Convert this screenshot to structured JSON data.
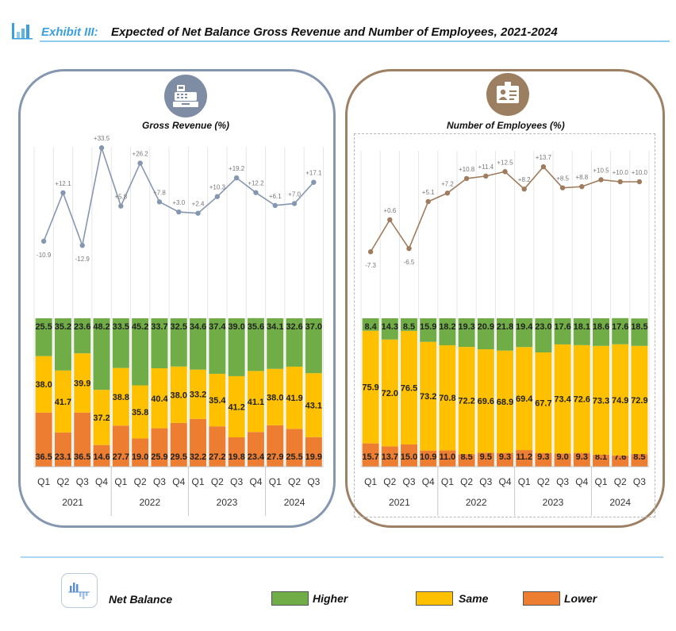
{
  "header": {
    "exhibit_label": "Exhibit III:",
    "title": "Expected of Net Balance Gross Revenue and Number of Employees, 2021-2024"
  },
  "colors": {
    "higher": "#70ad47",
    "same": "#ffc000",
    "lower": "#ed7d31",
    "revenue_line": "#8597b0",
    "employees_line": "#9e7c5d",
    "title_accent": "#3aa0e0"
  },
  "legend": {
    "net_balance": "Net Balance",
    "higher": "Higher",
    "same": "Same",
    "lower": "Lower"
  },
  "icons": {
    "header": "bar-chart-icon",
    "revenue_badge": "cash-register-icon",
    "employees_badge": "id-badge-icon",
    "legend_net_balance": "bar-chart-icon"
  },
  "chart_data": [
    {
      "type": "bar",
      "title": "Gross Revenue (%)",
      "stacked": true,
      "categories": [
        "Q1",
        "Q2",
        "Q3",
        "Q4",
        "Q1",
        "Q2",
        "Q3",
        "Q4",
        "Q1",
        "Q2",
        "Q3",
        "Q4",
        "Q1",
        "Q2",
        "Q3"
      ],
      "groups": [
        {
          "label": "2021",
          "count": 4
        },
        {
          "label": "2022",
          "count": 4
        },
        {
          "label": "2023",
          "count": 4
        },
        {
          "label": "2024",
          "count": 3
        }
      ],
      "series": [
        {
          "name": "Lower",
          "values": [
            36.5,
            23.1,
            36.5,
            14.6,
            27.7,
            19.0,
            25.9,
            29.5,
            32.2,
            27.2,
            19.8,
            23.4,
            27.9,
            25.5,
            19.9
          ]
        },
        {
          "name": "Same",
          "values": [
            38.0,
            41.7,
            39.9,
            37.2,
            38.8,
            35.8,
            40.4,
            38.0,
            33.2,
            35.4,
            41.2,
            41.1,
            38.0,
            41.9,
            43.1
          ]
        },
        {
          "name": "Higher",
          "values": [
            25.5,
            35.2,
            23.6,
            48.2,
            33.5,
            45.2,
            33.7,
            32.5,
            34.6,
            37.4,
            39.0,
            35.6,
            34.1,
            32.6,
            37.0
          ]
        }
      ],
      "net_balance": {
        "values": [
          -10.9,
          12.1,
          -12.9,
          33.5,
          5.8,
          26.2,
          7.8,
          3.0,
          2.4,
          10.3,
          19.2,
          12.2,
          6.1,
          7.0,
          17.1
        ],
        "labels": [
          "-10.9",
          "+12.1",
          "-12.9",
          "+33.5",
          "+5.8",
          "+26.2",
          "+7.8",
          "+3.0",
          "+2.4",
          "+10.3",
          "+19.2",
          "+12.2",
          "+6.1",
          "+7.0",
          "+17.1"
        ]
      }
    },
    {
      "type": "bar",
      "title": "Number of Employees (%)",
      "stacked": true,
      "categories": [
        "Q1",
        "Q2",
        "Q3",
        "Q4",
        "Q1",
        "Q2",
        "Q3",
        "Q4",
        "Q1",
        "Q2",
        "Q3",
        "Q4",
        "Q1",
        "Q2",
        "Q3"
      ],
      "groups": [
        {
          "label": "2021",
          "count": 4
        },
        {
          "label": "2022",
          "count": 4
        },
        {
          "label": "2023",
          "count": 4
        },
        {
          "label": "2024",
          "count": 3
        }
      ],
      "series": [
        {
          "name": "Lower",
          "values": [
            15.7,
            13.7,
            15.0,
            10.9,
            11.0,
            8.5,
            9.5,
            9.3,
            11.2,
            9.3,
            9.0,
            9.3,
            8.1,
            7.6,
            8.5
          ]
        },
        {
          "name": "Same",
          "values": [
            75.9,
            72.0,
            76.5,
            73.2,
            70.8,
            72.2,
            69.6,
            68.9,
            69.4,
            67.7,
            73.4,
            72.6,
            73.3,
            74.9,
            72.9
          ]
        },
        {
          "name": "Higher",
          "values": [
            8.4,
            14.3,
            8.5,
            15.9,
            18.2,
            19.3,
            20.9,
            21.8,
            19.4,
            23.0,
            17.6,
            18.1,
            18.6,
            17.6,
            18.5
          ]
        }
      ],
      "net_balance": {
        "values": [
          -7.3,
          0.6,
          -6.5,
          5.1,
          7.2,
          10.8,
          11.4,
          12.5,
          8.2,
          13.7,
          8.5,
          8.8,
          10.5,
          10.0,
          10.0
        ],
        "labels": [
          "-7.3",
          "+0.6",
          "-6.5",
          "+5.1",
          "+7.2",
          "+10.8",
          "+11.4",
          "+12.5",
          "+8.2",
          "+13.7",
          "+8.5",
          "+8.8",
          "+10.5",
          "+10.0",
          "+10.0"
        ]
      }
    }
  ]
}
